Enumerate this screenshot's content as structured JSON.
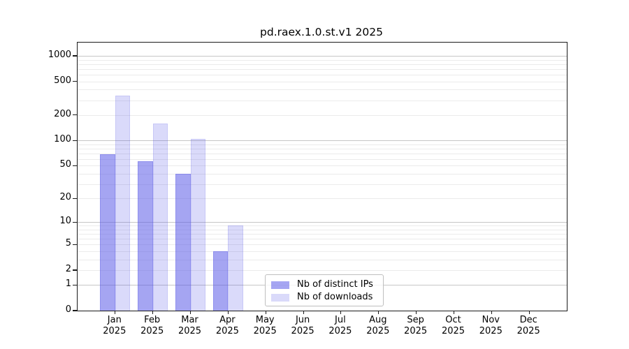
{
  "figure": {
    "background": "#ffffff",
    "spine_color": "#1a1a1a",
    "text_color": "#000000"
  },
  "chart_data": {
    "type": "bar",
    "title": "pd.raex.1.0.st.v1 2025",
    "categories": [
      "Jan 2025",
      "Feb 2025",
      "Mar 2025",
      "Apr 2025",
      "May 2025",
      "Jun 2025",
      "Jul 2025",
      "Aug 2025",
      "Sep 2025",
      "Oct 2025",
      "Nov 2025",
      "Dec 2025"
    ],
    "series": [
      {
        "name": "Nb of distinct IPs",
        "values": [
          69,
          56,
          40,
          4,
          0,
          0,
          0,
          0,
          0,
          0,
          0,
          0
        ],
        "fill": "rgba(85,85,230,0.53)",
        "edge": "rgba(85,85,230,0.28)"
      },
      {
        "name": "Nb of downloads",
        "values": [
          340,
          160,
          104,
          9,
          0,
          0,
          0,
          0,
          0,
          0,
          0,
          0
        ],
        "fill": "rgba(85,85,230,0.22)",
        "edge": "rgba(85,85,230,0.14)"
      }
    ],
    "xlabel": "",
    "ylabel": "",
    "yscale": "log1p (pixel position proportional to log10(value+1))",
    "yticks": [
      0,
      1,
      2,
      5,
      10,
      20,
      50,
      100,
      200,
      500,
      1000
    ],
    "ylim": [
      0,
      1433
    ],
    "grid": {
      "orientation": "horizontal",
      "major_at": [
        1,
        10,
        100,
        1000
      ],
      "minor_rule": "2..9 within each decade",
      "major_color": "#c6c6c6",
      "minor_color": "#ebebeb"
    },
    "legend": {
      "position": "inside lower-center of plot",
      "border_color": "#bfbfbf"
    }
  }
}
